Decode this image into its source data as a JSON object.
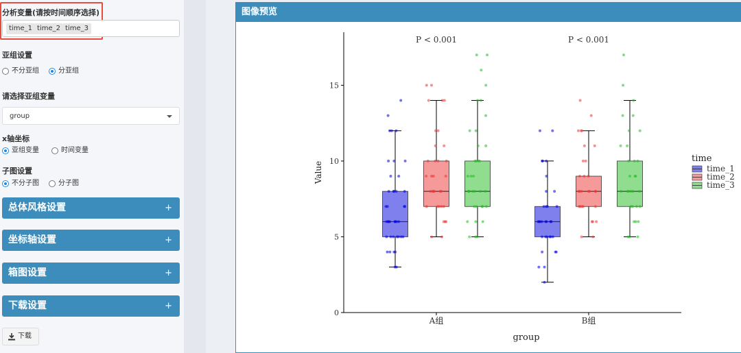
{
  "sidebar": {
    "analysis_var_title": "分析变量(请按时间顺序选择)",
    "chips": [
      "time_1",
      "time_2",
      "time_3"
    ],
    "subgroup_title": "亚组设置",
    "subgroup_options": [
      "不分亚组",
      "分亚组"
    ],
    "subgroup_selected": 1,
    "select_subgroup_title": "请选择亚组变量",
    "subgroup_var_value": "group",
    "xaxis_title": "x轴坐标",
    "xaxis_options": [
      "亚组变量",
      "时间变量"
    ],
    "xaxis_selected": 0,
    "facet_title": "子图设置",
    "facet_options": [
      "不分子图",
      "分子图"
    ],
    "facet_selected": 0,
    "accordions": [
      "总体风格设置",
      "坐标轴设置",
      "箱图设置",
      "下载设置"
    ],
    "accordion_icon": "+",
    "download_label": "下载"
  },
  "panel": {
    "title": "图像预览"
  },
  "icons": {
    "download": "download-icon",
    "caret": "caret-down-icon",
    "expand": "plus-icon"
  },
  "colors": {
    "accent": "#3c8dbc",
    "highlight": "#e74c3c",
    "time_1": "#0000dd",
    "time_2": "#ee3333",
    "time_3": "#22bb22"
  },
  "chart_data": {
    "type": "box",
    "title": "",
    "xlabel": "group",
    "ylabel": "Value",
    "categories": [
      "A组",
      "B组"
    ],
    "ylim": [
      0,
      18.5
    ],
    "yticks": [
      0,
      5,
      10,
      15
    ],
    "annotations": [
      "P < 0.001",
      "P < 0.001"
    ],
    "legend": {
      "title": "time",
      "entries": [
        "time_1",
        "time_2",
        "time_3"
      ],
      "position": "right"
    },
    "series": [
      {
        "name": "time_1",
        "boxes": [
          {
            "min": 3,
            "q1": 5,
            "median": 6,
            "q3": 8,
            "max": 12,
            "points": [
              3,
              3,
              4,
              4,
              4,
              4,
              5,
              5,
              5,
              5,
              5,
              5,
              5,
              6,
              6,
              6,
              6,
              6,
              6,
              6,
              6,
              7,
              7,
              7,
              7,
              8,
              8,
              8,
              8,
              8,
              9,
              9,
              10,
              10,
              10,
              12,
              12,
              12,
              13,
              14
            ]
          },
          {
            "min": 2,
            "q1": 5,
            "median": 6,
            "q3": 7,
            "max": 10,
            "points": [
              2,
              3,
              3,
              4,
              4,
              4,
              5,
              5,
              5,
              5,
              5,
              5,
              6,
              6,
              6,
              6,
              6,
              6,
              6,
              6,
              7,
              7,
              7,
              7,
              8,
              8,
              9,
              10,
              10,
              10,
              12,
              12
            ]
          }
        ]
      },
      {
        "name": "time_2",
        "boxes": [
          {
            "min": 5,
            "q1": 7,
            "median": 8,
            "q3": 10,
            "max": 14,
            "points": [
              5,
              5,
              6,
              6,
              6,
              7,
              7,
              7,
              7,
              7,
              8,
              8,
              8,
              8,
              8,
              8,
              9,
              9,
              9,
              9,
              10,
              10,
              10,
              10,
              11,
              11,
              12,
              12,
              14,
              14,
              14,
              15,
              15
            ]
          },
          {
            "min": 5,
            "q1": 7,
            "median": 8,
            "q3": 9,
            "max": 12,
            "points": [
              5,
              5,
              6,
              6,
              6,
              7,
              7,
              7,
              7,
              7,
              8,
              8,
              8,
              8,
              8,
              8,
              8,
              9,
              9,
              9,
              10,
              10,
              11,
              11,
              12,
              12,
              12,
              13,
              14
            ]
          }
        ]
      },
      {
        "name": "time_3",
        "boxes": [
          {
            "min": 5,
            "q1": 7,
            "median": 8,
            "q3": 10,
            "max": 14,
            "points": [
              5,
              5,
              5,
              6,
              6,
              6,
              7,
              7,
              7,
              7,
              7,
              8,
              8,
              8,
              8,
              8,
              8,
              8,
              9,
              9,
              9,
              10,
              10,
              10,
              10,
              11,
              11,
              12,
              12,
              13,
              14,
              14,
              15,
              16,
              17,
              17
            ]
          },
          {
            "min": 5,
            "q1": 7,
            "median": 8,
            "q3": 10,
            "max": 14,
            "points": [
              5,
              5,
              5,
              6,
              6,
              6,
              7,
              7,
              7,
              7,
              8,
              8,
              8,
              8,
              8,
              8,
              9,
              9,
              9,
              10,
              10,
              10,
              11,
              11,
              12,
              12,
              13,
              13,
              14,
              15,
              17
            ]
          }
        ]
      }
    ]
  }
}
